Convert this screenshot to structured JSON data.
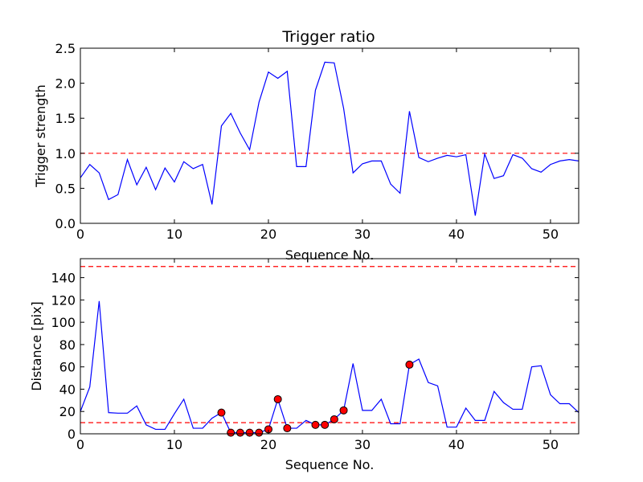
{
  "chart_data": [
    {
      "type": "line",
      "title": "Trigger ratio",
      "xlabel": "Sequence No.",
      "ylabel": "Trigger strength",
      "xlim": [
        0,
        53
      ],
      "ylim": [
        0,
        2.5
      ],
      "xticks": [
        0,
        10,
        20,
        30,
        40,
        50
      ],
      "yticks": [
        0.0,
        0.5,
        1.0,
        1.5,
        2.0,
        2.5
      ],
      "xtick_labels": [
        "0",
        "10",
        "20",
        "30",
        "40",
        "50"
      ],
      "ytick_labels": [
        "0.0",
        "0.5",
        "1.0",
        "1.5",
        "2.0",
        "2.5"
      ],
      "grid": false,
      "line_color": "#0000ff",
      "threshold_color": "#ff0000",
      "thresholds": [
        1.0
      ],
      "series": [
        {
          "x": [
            0,
            1,
            2,
            3,
            4,
            5,
            6,
            7,
            8,
            9,
            10,
            11,
            12,
            13,
            14,
            15,
            16,
            17,
            18,
            19,
            20,
            21,
            22,
            23,
            24,
            25,
            26,
            27,
            28,
            29,
            30,
            31,
            32,
            33,
            34,
            35,
            36,
            37,
            38,
            39,
            40,
            41,
            42,
            43,
            44,
            45,
            46,
            47,
            48,
            49,
            50,
            51,
            52,
            53
          ],
          "values": [
            0.65,
            0.84,
            0.72,
            0.34,
            0.41,
            0.91,
            0.55,
            0.8,
            0.48,
            0.79,
            0.59,
            0.88,
            0.78,
            0.84,
            0.27,
            1.39,
            1.57,
            1.29,
            1.05,
            1.73,
            2.16,
            2.07,
            2.17,
            0.81,
            0.81,
            1.9,
            2.3,
            2.29,
            1.64,
            0.72,
            0.85,
            0.89,
            0.89,
            0.56,
            0.43,
            1.6,
            0.94,
            0.88,
            0.93,
            0.97,
            0.95,
            0.98,
            0.11,
            0.99,
            0.64,
            0.68,
            0.98,
            0.93,
            0.78,
            0.73,
            0.84,
            0.89,
            0.91,
            0.89
          ]
        }
      ]
    },
    {
      "type": "line",
      "xlabel": "Sequence No.",
      "ylabel": "Distance [pix]",
      "xlim": [
        0,
        53
      ],
      "ylim": [
        0,
        157
      ],
      "xticks": [
        0,
        10,
        20,
        30,
        40,
        50
      ],
      "yticks": [
        0,
        20,
        40,
        60,
        80,
        100,
        120,
        140
      ],
      "xtick_labels": [
        "0",
        "10",
        "20",
        "30",
        "40",
        "50"
      ],
      "ytick_labels": [
        "0",
        "20",
        "40",
        "60",
        "80",
        "100",
        "120",
        "140"
      ],
      "grid": false,
      "line_color": "#0000ff",
      "threshold_color": "#ff0000",
      "marker_color": "#ff0000",
      "thresholds": [
        10,
        150
      ],
      "series": [
        {
          "x": [
            0,
            1,
            2,
            3,
            4,
            5,
            6,
            7,
            8,
            9,
            10,
            11,
            12,
            13,
            14,
            15,
            16,
            17,
            18,
            19,
            20,
            21,
            22,
            23,
            24,
            25,
            26,
            27,
            28,
            29,
            30,
            31,
            32,
            33,
            34,
            35,
            36,
            37,
            38,
            39,
            40,
            41,
            42,
            43,
            44,
            45,
            46,
            47,
            48,
            49,
            50,
            51,
            52,
            53
          ],
          "values": [
            20,
            42,
            119,
            19,
            18.5,
            18.5,
            25,
            8,
            4,
            4,
            18,
            31,
            5,
            5,
            14,
            19,
            1,
            1,
            1,
            1,
            4,
            31,
            5,
            5,
            12,
            8,
            8,
            13,
            21,
            63,
            21,
            21,
            31,
            9,
            9,
            62,
            67,
            46,
            43,
            6,
            6,
            23,
            12,
            12,
            38,
            28,
            22,
            22,
            60,
            61,
            35,
            27,
            27,
            19
          ]
        }
      ],
      "markers": {
        "x": [
          15,
          16,
          17,
          18,
          19,
          20,
          21,
          22,
          25,
          26,
          27,
          28,
          35
        ],
        "values": [
          19,
          1,
          1,
          1,
          1,
          4,
          31,
          5,
          8,
          8,
          13,
          21,
          62
        ]
      }
    }
  ]
}
